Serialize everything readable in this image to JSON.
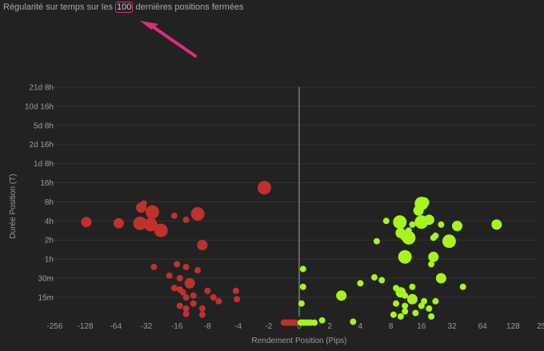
{
  "title": {
    "prefix": "Régularité sur temps sur les",
    "count": "100",
    "suffix": "dernières positions fermées"
  },
  "colors": {
    "background": "#222222",
    "loss": "#c0312e",
    "gain": "#a6f51d",
    "annotation": "#e02c7c",
    "zero_line": "#7a7a7a",
    "grid": "#333333"
  },
  "chart_data": {
    "type": "scatter",
    "xlabel": "Rendement Position (Pips)",
    "ylabel": "Durée Position (T)",
    "x_scale": "symlog",
    "x_ticks": [
      -256,
      -128,
      -64,
      -32,
      -16,
      -8,
      -4,
      -2,
      0,
      2,
      4,
      8,
      16,
      32,
      64,
      128,
      256
    ],
    "x_tick_labels": [
      "-256",
      "-128",
      "-64",
      "-32",
      "-16",
      "-8",
      "-4",
      "-2",
      "0",
      "2",
      "4",
      "8",
      "16",
      "32",
      "64",
      "128",
      "256"
    ],
    "y_scale": "log",
    "y_tick_labels": [
      "21d 8h",
      "10d 16h",
      "5d 8h",
      "2d 16h",
      "1d 8h",
      "16h",
      "8h",
      "4h",
      "2h",
      "1h",
      "30m",
      "15m"
    ],
    "y_tick_minutes": [
      30720,
      15360,
      7680,
      3840,
      1920,
      960,
      480,
      240,
      120,
      60,
      30,
      15
    ],
    "grid": true,
    "point_units": "x: pips, y: minutes, size: relative",
    "series": [
      {
        "key": "loss",
        "points": [
          [
            -2.2,
            800,
            3
          ],
          [
            -10,
            310,
            3
          ],
          [
            -13,
            250,
            1
          ],
          [
            -28,
            330,
            3
          ],
          [
            -36,
            390,
            2
          ],
          [
            -37,
            220,
            3
          ],
          [
            -29,
            210,
            3
          ],
          [
            -34,
            450,
            1
          ],
          [
            -23,
            170,
            3
          ],
          [
            -17,
            290,
            1
          ],
          [
            -9,
            100,
            2
          ],
          [
            -60,
            220,
            2
          ],
          [
            -125,
            230,
            2
          ],
          [
            -16,
            50,
            1
          ],
          [
            -13,
            45,
            1
          ],
          [
            -10,
            40,
            1
          ],
          [
            -12,
            25,
            2
          ],
          [
            -15,
            30,
            1
          ],
          [
            -19,
            33,
            1
          ],
          [
            -17,
            21,
            1
          ],
          [
            -15,
            20,
            1
          ],
          [
            -14,
            18,
            1
          ],
          [
            -13,
            15,
            1
          ],
          [
            -11,
            16,
            1
          ],
          [
            -8,
            19,
            1
          ],
          [
            -7,
            15,
            1
          ],
          [
            -6.2,
            13,
            1
          ],
          [
            -4.2,
            19,
            1
          ],
          [
            -4.1,
            14,
            1
          ],
          [
            -15,
            11,
            1
          ],
          [
            -13,
            10,
            1
          ],
          [
            -11,
            12,
            1
          ],
          [
            -9,
            10,
            1
          ],
          [
            -13,
            8.2,
            1
          ],
          [
            -9,
            8,
            1
          ],
          [
            -27,
            45,
            1
          ],
          [
            -1.0,
            6,
            1
          ],
          [
            -0.85,
            6,
            1
          ],
          [
            -0.7,
            6,
            1
          ],
          [
            -0.55,
            6,
            1
          ],
          [
            -0.4,
            6,
            1
          ],
          [
            -0.25,
            6,
            1
          ]
        ]
      },
      {
        "key": "gain",
        "points": [
          [
            0.1,
            6,
            1
          ],
          [
            0.25,
            6,
            1
          ],
          [
            0.4,
            6,
            1
          ],
          [
            0.55,
            6,
            1
          ],
          [
            0.75,
            6,
            1
          ],
          [
            1.0,
            6,
            1
          ],
          [
            1.5,
            6.5,
            1
          ],
          [
            3.4,
            6.2,
            1
          ],
          [
            0.25,
            42,
            1
          ],
          [
            0.25,
            22,
            1
          ],
          [
            0.15,
            12,
            1
          ],
          [
            2.6,
            16,
            2
          ],
          [
            4.0,
            25,
            1
          ],
          [
            5.5,
            31,
            1
          ],
          [
            6.5,
            28,
            1
          ],
          [
            5.8,
            115,
            1
          ],
          [
            7.2,
            240,
            1
          ],
          [
            9.8,
            230,
            3
          ],
          [
            16,
            450,
            3
          ],
          [
            17,
            470,
            2
          ],
          [
            15,
            350,
            2
          ],
          [
            16,
            230,
            3
          ],
          [
            19,
            250,
            2
          ],
          [
            13,
            210,
            1
          ],
          [
            10,
            155,
            2
          ],
          [
            11,
            140,
            2
          ],
          [
            12,
            130,
            3
          ],
          [
            11,
            65,
            3
          ],
          [
            21,
            130,
            1
          ],
          [
            22,
            140,
            1
          ],
          [
            25,
            210,
            1
          ],
          [
            36,
            200,
            2
          ],
          [
            30,
            115,
            3
          ],
          [
            21,
            65,
            2
          ],
          [
            20,
            50,
            1
          ],
          [
            25,
            30,
            2
          ],
          [
            13,
            22,
            1
          ],
          [
            10,
            18,
            2
          ],
          [
            11,
            16,
            1
          ],
          [
            13,
            14,
            2
          ],
          [
            17,
            13,
            1
          ],
          [
            22,
            13,
            1
          ],
          [
            9,
            12,
            1
          ],
          [
            11,
            11,
            1
          ],
          [
            16,
            11,
            1
          ],
          [
            11,
            9,
            1
          ],
          [
            14,
            8.5,
            1
          ],
          [
            8.5,
            8,
            1
          ],
          [
            10,
            7.5,
            1
          ],
          [
            19,
            10,
            1
          ],
          [
            20,
            7.5,
            1
          ],
          [
            41,
            22,
            1
          ],
          [
            88,
            210,
            2
          ],
          [
            12,
            170,
            1
          ],
          [
            9,
            21,
            1
          ]
        ]
      }
    ]
  }
}
